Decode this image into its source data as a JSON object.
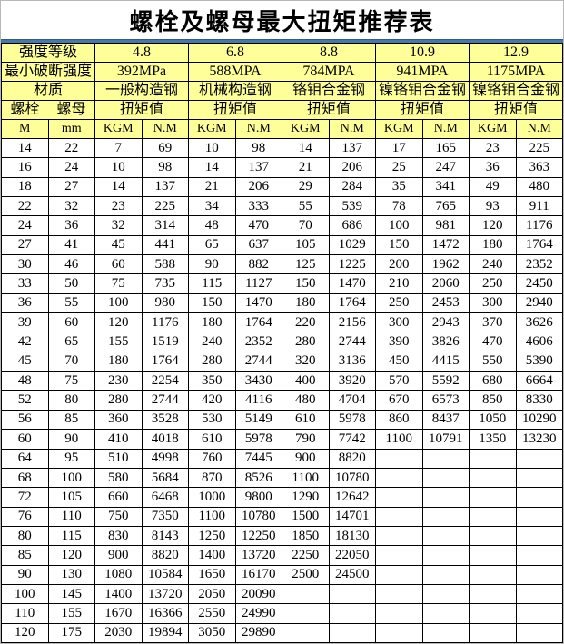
{
  "title": "螺栓及螺母最大扭矩推荐表",
  "colors": {
    "header_bg": "#ffff99",
    "grid": "#000000",
    "divider_blue": "#4878a8",
    "text": "#000000",
    "page_bg": "#ffffff"
  },
  "header": {
    "strength_label": "强度等级",
    "strength_grades": [
      "4.8",
      "6.8",
      "8.8",
      "10.9",
      "12.9"
    ],
    "breaking_label": "最小破断强度",
    "breaking_values": [
      "392MPa",
      "588MPA",
      "784MPA",
      "941MPA",
      "1175MPA"
    ],
    "material_label": "材质",
    "materials": [
      "一般构造钢",
      "机械构造钢",
      "铬钼合金钢",
      "镍铬钼合金钢",
      "镍铬钼合金钢"
    ],
    "bolt_label": "螺栓",
    "nut_label": "螺母",
    "torque_label": "扭矩值",
    "unit_m": "M",
    "unit_mm": "mm",
    "unit_kgm": "KGM",
    "unit_nm": "N.M"
  },
  "chart_data": {
    "type": "table",
    "title": "螺栓及螺母最大扭矩推荐表",
    "columns": [
      "M",
      "mm",
      "4.8 KGM",
      "4.8 N.M",
      "6.8 KGM",
      "6.8 N.M",
      "8.8 KGM",
      "8.8 N.M",
      "10.9 KGM",
      "10.9 N.M",
      "12.9 KGM",
      "12.9 N.M"
    ],
    "rows": [
      [
        "14",
        "22",
        "7",
        "69",
        "10",
        "98",
        "14",
        "137",
        "17",
        "165",
        "23",
        "225"
      ],
      [
        "16",
        "24",
        "10",
        "98",
        "14",
        "137",
        "21",
        "206",
        "25",
        "247",
        "36",
        "363"
      ],
      [
        "18",
        "27",
        "14",
        "137",
        "21",
        "206",
        "29",
        "284",
        "35",
        "341",
        "49",
        "480"
      ],
      [
        "22",
        "32",
        "23",
        "225",
        "34",
        "333",
        "55",
        "539",
        "78",
        "765",
        "93",
        "911"
      ],
      [
        "24",
        "36",
        "32",
        "314",
        "48",
        "470",
        "70",
        "686",
        "100",
        "981",
        "120",
        "1176"
      ],
      [
        "27",
        "41",
        "45",
        "441",
        "65",
        "637",
        "105",
        "1029",
        "150",
        "1472",
        "180",
        "1764"
      ],
      [
        "30",
        "46",
        "60",
        "588",
        "90",
        "882",
        "125",
        "1225",
        "200",
        "1962",
        "240",
        "2352"
      ],
      [
        "33",
        "50",
        "75",
        "735",
        "115",
        "1127",
        "150",
        "1470",
        "210",
        "2060",
        "250",
        "2450"
      ],
      [
        "36",
        "55",
        "100",
        "980",
        "150",
        "1470",
        "180",
        "1764",
        "250",
        "2453",
        "300",
        "2940"
      ],
      [
        "39",
        "60",
        "120",
        "1176",
        "180",
        "1764",
        "220",
        "2156",
        "300",
        "2943",
        "370",
        "3626"
      ],
      [
        "42",
        "65",
        "155",
        "1519",
        "240",
        "2352",
        "280",
        "2744",
        "390",
        "3826",
        "470",
        "4606"
      ],
      [
        "45",
        "70",
        "180",
        "1764",
        "280",
        "2744",
        "320",
        "3136",
        "450",
        "4415",
        "550",
        "5390"
      ],
      [
        "48",
        "75",
        "230",
        "2254",
        "350",
        "3430",
        "400",
        "3920",
        "570",
        "5592",
        "680",
        "6664"
      ],
      [
        "52",
        "80",
        "280",
        "2744",
        "420",
        "4116",
        "480",
        "4704",
        "670",
        "6573",
        "850",
        "8330"
      ],
      [
        "56",
        "85",
        "360",
        "3528",
        "530",
        "5149",
        "610",
        "5978",
        "860",
        "8437",
        "1050",
        "10290"
      ],
      [
        "60",
        "90",
        "410",
        "4018",
        "610",
        "5978",
        "790",
        "7742",
        "1100",
        "10791",
        "1350",
        "13230"
      ],
      [
        "64",
        "95",
        "510",
        "4998",
        "760",
        "7445",
        "900",
        "8820",
        "",
        "",
        "",
        ""
      ],
      [
        "68",
        "100",
        "580",
        "5684",
        "870",
        "8526",
        "1100",
        "10780",
        "",
        "",
        "",
        ""
      ],
      [
        "72",
        "105",
        "660",
        "6468",
        "1000",
        "9800",
        "1290",
        "12642",
        "",
        "",
        "",
        ""
      ],
      [
        "76",
        "110",
        "750",
        "7350",
        "1100",
        "10780",
        "1500",
        "14701",
        "",
        "",
        "",
        ""
      ],
      [
        "80",
        "115",
        "830",
        "8143",
        "1250",
        "12250",
        "1850",
        "18130",
        "",
        "",
        "",
        ""
      ],
      [
        "85",
        "120",
        "900",
        "8820",
        "1400",
        "13720",
        "2250",
        "22050",
        "",
        "",
        "",
        ""
      ],
      [
        "90",
        "130",
        "1080",
        "10584",
        "1650",
        "16170",
        "2500",
        "24500",
        "",
        "",
        "",
        ""
      ],
      [
        "100",
        "145",
        "1400",
        "13720",
        "2050",
        "20090",
        "",
        "",
        "",
        "",
        "",
        ""
      ],
      [
        "110",
        "155",
        "1670",
        "16366",
        "2550",
        "24990",
        "",
        "",
        "",
        "",
        "",
        ""
      ],
      [
        "120",
        "175",
        "2030",
        "19894",
        "3050",
        "29890",
        "",
        "",
        "",
        "",
        "",
        ""
      ]
    ]
  }
}
